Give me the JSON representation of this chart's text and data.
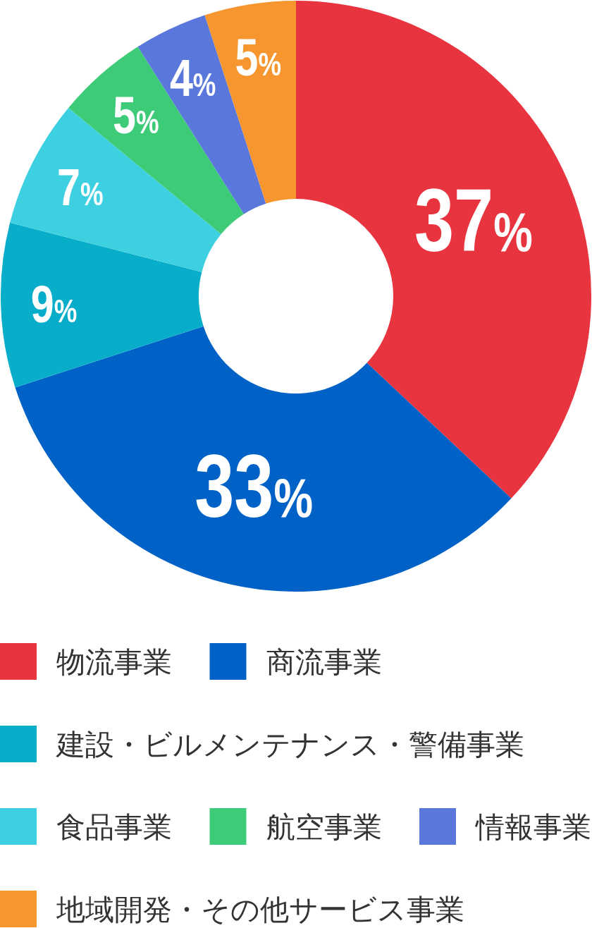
{
  "chart_data": {
    "type": "donut",
    "categories": [
      "物流事業",
      "商流事業",
      "建設・ビルメンテナンス・警備事業",
      "食品事業",
      "航空事業",
      "情報事業",
      "地域開発・その他サービス事業"
    ],
    "values": [
      37,
      33,
      9,
      7,
      5,
      4,
      5
    ],
    "colors": [
      "#e8343f",
      "#0062c6",
      "#08adc9",
      "#3dd0e0",
      "#3dcb77",
      "#5a78db",
      "#f7962f"
    ],
    "value_labels": [
      "37%",
      "33%",
      "9%",
      "7%",
      "5%",
      "4%",
      "5%"
    ],
    "legend": "bottom"
  }
}
